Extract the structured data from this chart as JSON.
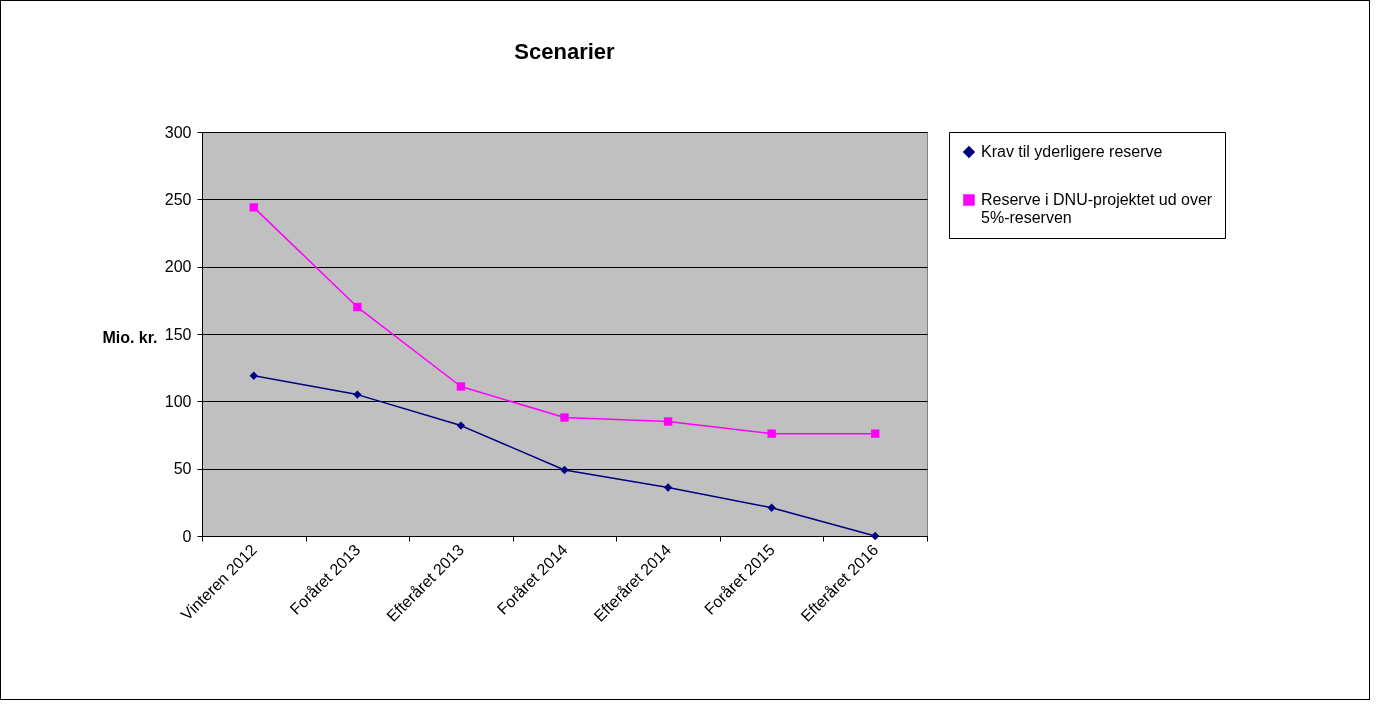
{
  "chart_data": {
    "type": "line",
    "title": "Scenarier",
    "ylabel": "Mio. kr.",
    "categories": [
      "Vinteren 2012",
      "Foråret 2013",
      "Efteråret 2013",
      "Foråret 2014",
      "Efteråret 2014",
      "Foråret 2015",
      "Efteråret 2016"
    ],
    "series": [
      {
        "name": "Krav til yderligere reserve",
        "color": "#000080",
        "marker": "diamond",
        "values": [
          119,
          105,
          82,
          49,
          36,
          21,
          0
        ]
      },
      {
        "name": "Reserve i DNU-projektet ud over 5%-reserven",
        "color": "#ff00ff",
        "marker": "square",
        "values": [
          244,
          170,
          111,
          88,
          85,
          76,
          76
        ]
      }
    ],
    "ylim": [
      0,
      300
    ],
    "yticks": [
      0,
      50,
      100,
      150,
      200,
      250,
      300
    ],
    "grid": "y",
    "legend": "right",
    "line_style": "solid"
  }
}
